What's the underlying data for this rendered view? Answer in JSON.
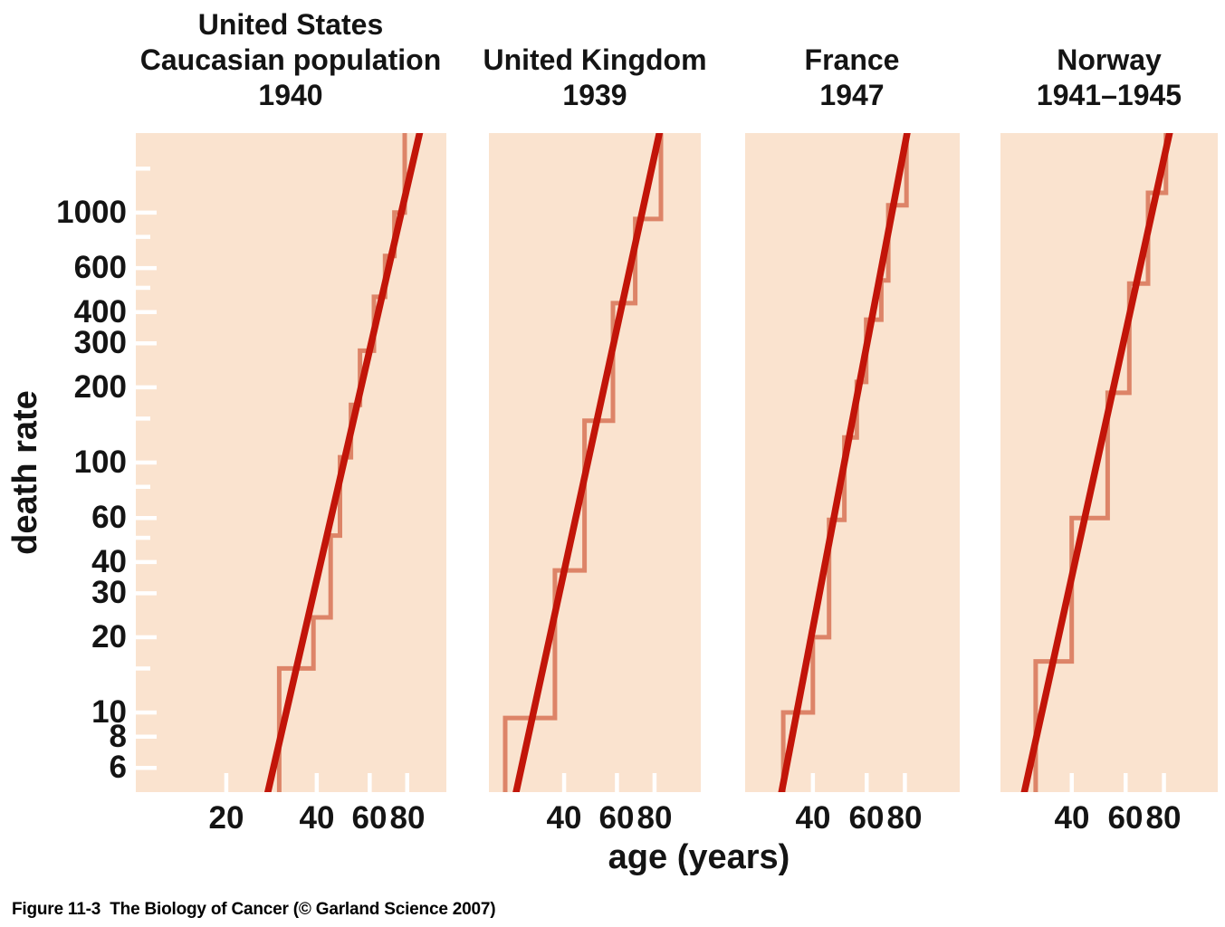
{
  "figure": {
    "caption": "Figure 11-3  The Biology of Cancer (© Garland Science 2007)"
  },
  "axes": {
    "x_label": "age (years)",
    "y_label": "death rate",
    "x_scale": "log",
    "y_scale": "log",
    "y_range": [
      4.8,
      2080
    ],
    "y_ticks_all": [
      6,
      8,
      10,
      15,
      20,
      30,
      40,
      50,
      60,
      80,
      100,
      150,
      200,
      300,
      400,
      500,
      600,
      800,
      1000,
      1500
    ],
    "y_ticks_labeled": [
      6,
      8,
      10,
      20,
      30,
      40,
      60,
      100,
      200,
      300,
      400,
      600,
      1000
    ],
    "grid": "off",
    "legend": "none"
  },
  "colors": {
    "panel_bg": "#fae3cf",
    "step_curve": "#dd8468",
    "fit_line": "#c21509",
    "tick": "#ffffff",
    "text": "#141414"
  },
  "chart_data": [
    {
      "type": "line",
      "subtype": "step-histogram-with-loglog-fit",
      "title": "United States\nCaucasian population\n1940",
      "country": "United States Caucasian population",
      "year": "1940",
      "x_range": [
        10,
        108
      ],
      "x_ticks": [
        20,
        40,
        60,
        80
      ],
      "steps": [
        [
          30,
          39,
          15
        ],
        [
          39,
          44.5,
          24
        ],
        [
          44.5,
          47.8,
          51
        ],
        [
          47.8,
          52,
          105
        ],
        [
          52,
          55.7,
          170
        ],
        [
          55.7,
          62,
          280
        ],
        [
          62,
          67.5,
          460
        ],
        [
          67.5,
          72.5,
          670
        ],
        [
          72.5,
          78.5,
          1000
        ]
      ],
      "fit_line": {
        "age": [
          27.5,
          88
        ],
        "rate": [
          4.8,
          2080
        ]
      }
    },
    {
      "type": "line",
      "subtype": "step-histogram-with-loglog-fit",
      "title": "United Kingdom\n1939",
      "country": "United Kingdom",
      "year": "1939",
      "x_range": [
        22.5,
        114
      ],
      "x_ticks": [
        40,
        60,
        80
      ],
      "steps": [
        [
          25.5,
          37.3,
          9.5
        ],
        [
          37.3,
          46.8,
          37
        ],
        [
          46.8,
          58.2,
          147
        ],
        [
          58.2,
          69,
          434
        ],
        [
          69,
          84,
          943
        ]
      ],
      "fit_line": {
        "age": [
          27.7,
          83
        ],
        "rate": [
          4.8,
          2080
        ]
      }
    },
    {
      "type": "line",
      "subtype": "step-histogram-with-loglog-fit",
      "title": "France\n1947",
      "country": "France",
      "year": "1947",
      "x_range": [
        24,
        121
      ],
      "x_ticks": [
        40,
        60,
        80
      ],
      "steps": [
        [
          32,
          40,
          10
        ],
        [
          40,
          45.2,
          20
        ],
        [
          45.2,
          50.7,
          59
        ],
        [
          50.7,
          55.7,
          126
        ],
        [
          55.7,
          59.8,
          210
        ],
        [
          59.8,
          67,
          373
        ],
        [
          67,
          70.6,
          535
        ],
        [
          70.6,
          81,
          1070
        ]
      ],
      "fit_line": {
        "age": [
          31.6,
          81.4
        ],
        "rate": [
          4.8,
          2080
        ]
      }
    },
    {
      "type": "line",
      "subtype": "step-histogram-with-loglog-fit",
      "title": "Norway\n1941–1945",
      "country": "Norway",
      "year": "1941–1945",
      "x_range": [
        23.4,
        120
      ],
      "x_ticks": [
        40,
        60,
        80
      ],
      "steps": [
        [
          30.5,
          40,
          16
        ],
        [
          40,
          52.4,
          60
        ],
        [
          52.4,
          61.7,
          190
        ],
        [
          61.7,
          71,
          520
        ],
        [
          71,
          81.3,
          1200
        ]
      ],
      "fit_line": {
        "age": [
          28,
          83.5
        ],
        "rate": [
          4.8,
          2080
        ]
      }
    }
  ]
}
